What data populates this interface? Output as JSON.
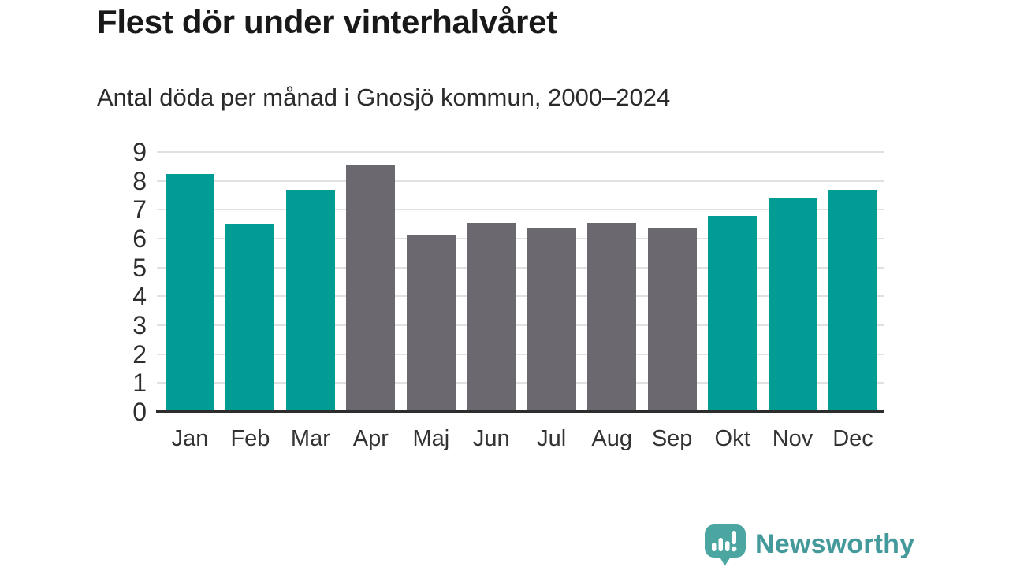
{
  "chart_data": {
    "type": "bar",
    "title": "Flest dör under vinterhalvåret",
    "subtitle": "Antal döda per månad i Gnosjö kommun, 2000–2024",
    "categories": [
      "Jan",
      "Feb",
      "Mar",
      "Apr",
      "Maj",
      "Jun",
      "Jul",
      "Aug",
      "Sep",
      "Okt",
      "Nov",
      "Dec"
    ],
    "values": [
      8.25,
      6.5,
      7.7,
      8.55,
      6.15,
      6.55,
      6.35,
      6.55,
      6.35,
      6.8,
      7.4,
      7.7
    ],
    "bar_colors": [
      "winter",
      "winter",
      "winter",
      "summer",
      "summer",
      "summer",
      "summer",
      "summer",
      "summer",
      "winter",
      "winter",
      "winter"
    ],
    "palette": {
      "winter": "#019C94",
      "summer": "#6B6870"
    },
    "xlabel": "",
    "ylabel": "",
    "ylim": [
      0,
      9
    ],
    "yticks": [
      0,
      1,
      2,
      3,
      4,
      5,
      6,
      7,
      8,
      9
    ],
    "grid": "horizontal",
    "grid_color": "#E1E1E1",
    "axis_color": "#2D2D2D",
    "tick_label_color": "#2E2E2E",
    "legend": "none"
  },
  "branding": {
    "name": "Newsworthy",
    "logo_icon": "bar-chart-speech-bubble-icon",
    "text_color": "#44999B",
    "icon_color": "#4BA5A1",
    "icon_glyph_color": "#FFFFFF"
  }
}
